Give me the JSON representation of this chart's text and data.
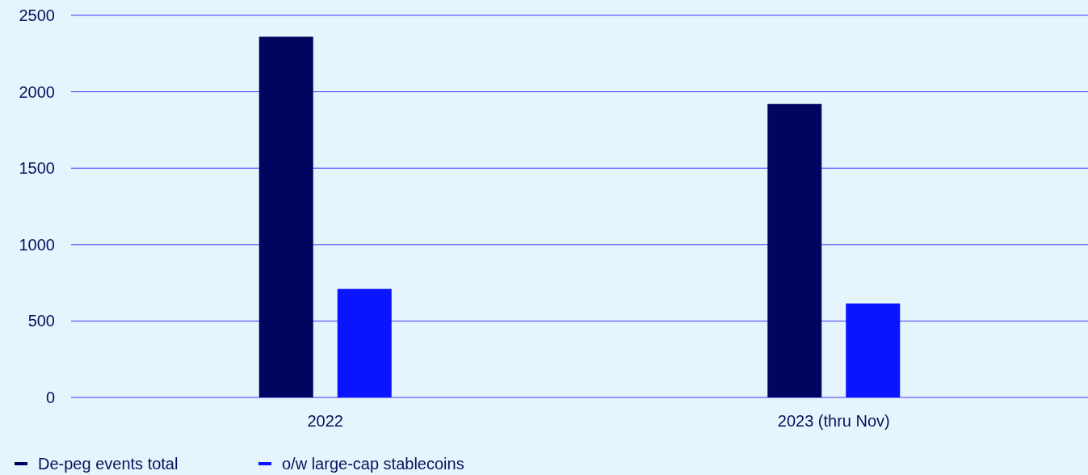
{
  "chart_data": {
    "type": "bar",
    "categories": [
      "2022",
      "2023 (thru Nov)"
    ],
    "series": [
      {
        "name": "De-peg events total",
        "color": "#00065f",
        "values": [
          2360,
          1920
        ]
      },
      {
        "name": "o/w large-cap stablecoins",
        "color": "#0a14ff",
        "values": [
          710,
          615
        ]
      }
    ],
    "ylim": [
      0,
      2500
    ],
    "yticks": [
      0,
      500,
      1000,
      1500,
      2000,
      2500
    ],
    "grid": "y",
    "legend": "bottom left"
  }
}
